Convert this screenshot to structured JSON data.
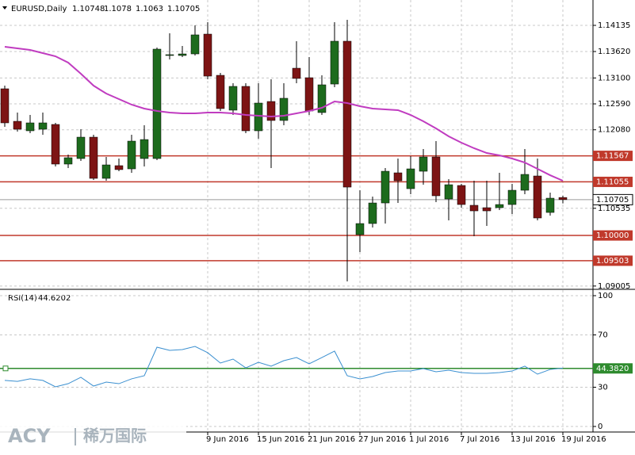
{
  "chart_data": [
    {
      "type": "candlestick",
      "title": "EURUSD,Daily",
      "categories": [
        null,
        null,
        null,
        null,
        null,
        null,
        null,
        null,
        null,
        null,
        null,
        null,
        null,
        null,
        null,
        null,
        "9 Jun 2016",
        null,
        null,
        null,
        "15 Jun 2016",
        null,
        null,
        null,
        "21 Jun 2016",
        null,
        null,
        null,
        "27 Jun 2016",
        null,
        null,
        null,
        "1 Jul 2016",
        null,
        null,
        null,
        "7 Jul 2016",
        null,
        null,
        null,
        "13 Jul 2016",
        null,
        null,
        null,
        "19 Jul 2016"
      ],
      "open": [
        1.12887,
        1.12247,
        1.1206,
        1.12091,
        1.12185,
        1.11405,
        1.11514,
        1.11935,
        1.11124,
        1.11374,
        1.11311,
        1.11514,
        1.11514,
        1.13542,
        1.13542,
        1.13573,
        1.13963,
        1.13152,
        1.12466,
        1.12934,
        1.1206,
        1.12637,
        1.12263,
        1.13292,
        1.13105,
        1.12419,
        1.1298,
        1.13823,
        1.10016,
        1.10235,
        1.1064,
        1.11233,
        1.10921,
        1.11264,
        1.11545,
        1.10718,
        1.10984,
        1.10594,
        1.10547,
        1.10547,
        1.10609,
        1.1089,
        1.11171,
        1.10453,
        1.10748
      ],
      "high": [
        1.12949,
        1.12419,
        1.12372,
        1.12419,
        1.12216,
        1.11592,
        1.12091,
        1.11982,
        1.11545,
        1.11514,
        1.11982,
        1.12169,
        1.13698,
        1.13979,
        1.13729,
        1.14135,
        1.14197,
        1.13199,
        1.12996,
        1.12996,
        1.12996,
        1.13074,
        1.12996,
        1.13823,
        1.13511,
        1.13152,
        1.14197,
        1.14244,
        1.1089,
        1.10765,
        1.11327,
        1.11514,
        1.11561,
        1.11701,
        1.11857,
        1.11108,
        1.11015,
        1.11077,
        1.11077,
        1.11233,
        1.11015,
        1.11701,
        1.11514,
        1.10843,
        1.1078
      ],
      "low": [
        1.12138,
        1.12044,
        1.12013,
        1.11982,
        1.11358,
        1.11327,
        1.11467,
        1.11093,
        1.11077,
        1.11264,
        1.11233,
        1.11358,
        1.11483,
        1.13464,
        1.13511,
        1.13542,
        1.13074,
        1.1245,
        1.12372,
        1.12013,
        1.11904,
        1.11327,
        1.12169,
        1.12996,
        1.12372,
        1.12372,
        1.12918,
        1.09096,
        1.09673,
        1.10157,
        1.10235,
        1.1064,
        1.10812,
        1.10999,
        1.10656,
        1.10297,
        1.10547,
        1.09985,
        1.10188,
        1.105,
        1.10422,
        1.10812,
        1.10297,
        1.10391,
        1.1063
      ],
      "close": [
        1.12216,
        1.12091,
        1.12216,
        1.12216,
        1.11405,
        1.1153,
        1.11935,
        1.11124,
        1.11389,
        1.11296,
        1.11857,
        1.11888,
        1.13667,
        1.13558,
        1.13573,
        1.13948,
        1.13136,
        1.12497,
        1.12934,
        1.1206,
        1.12606,
        1.12263,
        1.127,
        1.1309,
        1.1245,
        1.12965,
        1.13823,
        1.10952,
        1.10235,
        1.1064,
        1.11264,
        1.11077,
        1.11311,
        1.11545,
        1.10781,
        1.10999,
        1.10609,
        1.10484,
        1.10484,
        1.10609,
        1.1089,
        1.11202,
        1.10344,
        1.10734,
        1.10705
      ],
      "up_color": "#1d6b1d",
      "down_color": "#7d1414",
      "moving_average": {
        "color": "#c03cc0",
        "values": [
          1.13714,
          1.13682,
          1.13651,
          1.13589,
          1.13526,
          1.13402,
          1.13183,
          1.12949,
          1.12793,
          1.12684,
          1.12575,
          1.12497,
          1.1245,
          1.12419,
          1.12403,
          1.12403,
          1.12419,
          1.12419,
          1.12403,
          1.12372,
          1.12356,
          1.12341,
          1.12356,
          1.12403,
          1.1245,
          1.12512,
          1.12637,
          1.12606,
          1.12544,
          1.12497,
          1.12481,
          1.12466,
          1.12372,
          1.12247,
          1.12107,
          1.11951,
          1.11826,
          1.11717,
          1.11623,
          1.11576,
          1.11514,
          1.11436,
          1.11311,
          1.11186,
          1.11077
        ]
      },
      "ylim": [
        1.08987,
        1.14634
      ],
      "yticks": [
        1.14135,
        {
          "value": 1.1362,
          "label": "1.13620"
        },
        {
          "value": 1.131,
          "label": "1.13100"
        },
        {
          "value": 1.1259,
          "label": "1.12590"
        },
        {
          "value": 1.1208,
          "label": "1.12080"
        },
        1.10535,
        1.09005
      ],
      "levels": [
        1.11567,
        1.11055,
        {
          "value": 1.1,
          "label": "1.10000"
        },
        1.09503
      ],
      "level_color": "#c0392b",
      "grid": true
    },
    {
      "type": "line",
      "title": "RSI(14)",
      "color": "#3a8fd0",
      "values": [
        35.2,
        34.5,
        36.4,
        35.2,
        30.3,
        32.7,
        37.6,
        30.9,
        33.9,
        32.7,
        36.4,
        38.8,
        60.6,
        58.2,
        58.8,
        61.2,
        56.4,
        48.5,
        51.5,
        44.8,
        49.1,
        46.1,
        50.3,
        52.7,
        47.9,
        52.7,
        57.6,
        38.8,
        36.4,
        38.2,
        41.2,
        42.4,
        42.4,
        44.2,
        41.8,
        43.0,
        41.2,
        40.6,
        40.6,
        41.2,
        42.4,
        46.1,
        40.0,
        43.6,
        44.6202
      ],
      "ylim": [
        0,
        100
      ],
      "yticks": [
        0,
        30,
        70,
        100
      ],
      "level": {
        "value": 44.382,
        "label": "44.3820"
      },
      "level_color": "#2e8b2e",
      "grid": true
    }
  ],
  "watermark": {
    "brand": "ACY",
    "name": "稀万国际"
  }
}
